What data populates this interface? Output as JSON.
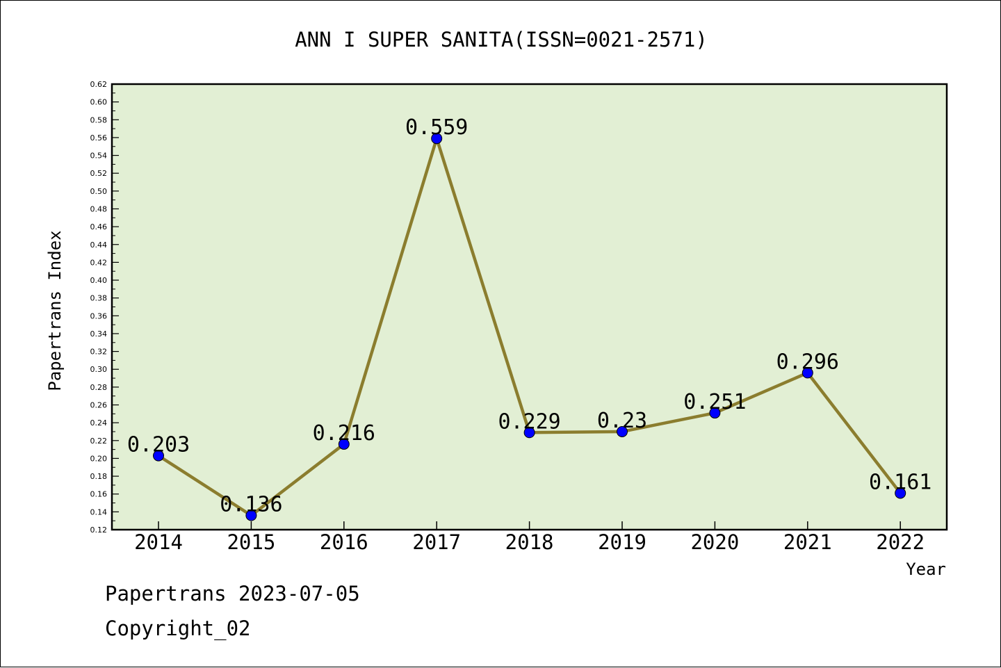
{
  "chart_data": {
    "type": "line",
    "title": "ANN I SUPER SANITA(ISSN=0021-2571)",
    "xlabel": "Year",
    "ylabel": "Papertrans Index",
    "categories": [
      "2014",
      "2015",
      "2016",
      "2017",
      "2018",
      "2019",
      "2020",
      "2021",
      "2022"
    ],
    "series": [
      {
        "values": [
          0.203,
          0.136,
          0.216,
          0.559,
          0.229,
          0.23,
          0.251,
          0.296,
          0.161
        ],
        "value_labels": [
          "0.203",
          "0.136",
          "0.216",
          "0.559",
          "0.229",
          "0.23",
          "0.251",
          "0.296",
          "0.161"
        ],
        "line_color": "#8b7d2e",
        "marker_color": "#0000ff"
      }
    ],
    "ylim": [
      0.12,
      0.62
    ],
    "ytick_step": 0.02,
    "plot_background": "#e2efd4",
    "grid": false,
    "legend": "none"
  },
  "footer": {
    "line1": "Papertrans 2023-07-05",
    "line2": "Copyright_02"
  }
}
